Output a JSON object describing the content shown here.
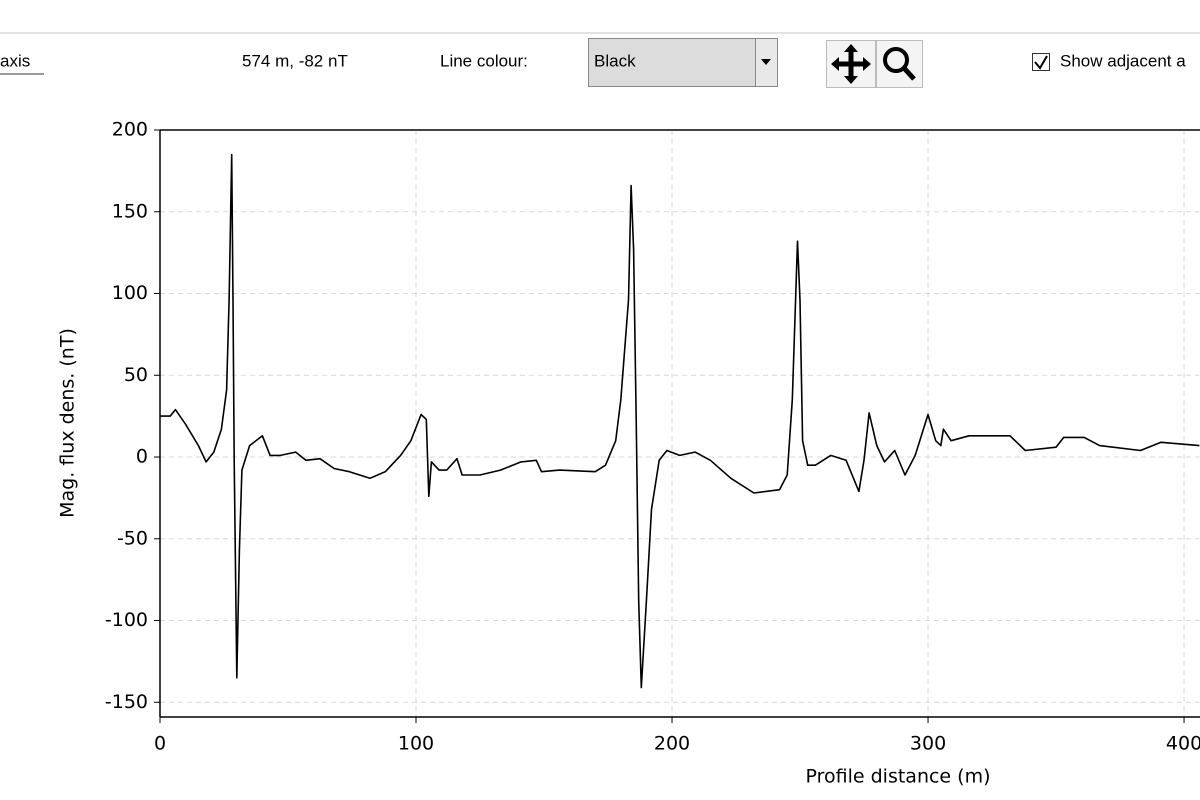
{
  "toolbar": {
    "axis_label": "axis",
    "cursor_readout": "574 m, -82 nT",
    "line_colour_label": "Line colour:",
    "line_colour_value": "Black",
    "show_adjacent_label": "Show adjacent a",
    "show_adjacent_checked": true
  },
  "chart_data": {
    "type": "line",
    "x_label": "Profile distance (m)",
    "y_label": "Mag. flux dens. (nT)",
    "x": [
      0,
      4,
      6,
      10,
      15,
      18,
      21,
      24,
      26,
      27,
      28,
      28.5,
      29,
      30,
      31,
      32,
      35,
      40,
      43,
      47,
      53,
      57,
      62.5,
      68,
      74,
      82,
      88,
      94,
      98,
      102,
      104,
      105,
      106,
      109,
      112,
      116,
      118,
      125,
      133,
      141,
      147,
      149,
      156,
      170,
      174,
      178,
      180,
      183,
      184,
      185,
      186,
      187,
      188,
      190,
      192,
      195,
      198,
      203,
      209,
      215,
      223,
      232,
      242,
      245,
      247,
      249,
      250,
      251,
      253,
      256,
      262,
      268,
      273,
      275,
      277,
      280,
      283,
      287,
      291,
      295,
      300,
      303,
      305,
      306,
      309,
      316,
      332,
      338,
      350,
      353,
      361,
      367,
      383,
      391,
      406
    ],
    "series": [
      {
        "color": "#000000",
        "values": [
          25,
          25,
          29,
          20,
          7,
          -3,
          3,
          17,
          41,
          96,
          185,
          96,
          -2,
          -135,
          -57,
          -8,
          7,
          13,
          1,
          1,
          3,
          -2,
          -1,
          -7,
          -9,
          -13,
          -9,
          1,
          10,
          26,
          23,
          -24,
          -3,
          -8,
          -8,
          -1,
          -11,
          -11,
          -8,
          -3,
          -2,
          -9,
          -8,
          -9,
          -5,
          10,
          35,
          96,
          166,
          127,
          23,
          -88,
          -141,
          -88,
          -32,
          -2,
          4,
          1,
          3,
          -2,
          -13,
          -22,
          -20,
          -11,
          35,
          132,
          96,
          10,
          -5,
          -5,
          1,
          -2,
          -21,
          -2,
          27,
          7,
          -3,
          4,
          -11,
          1,
          26,
          10,
          7,
          17,
          10,
          13,
          13,
          4,
          6,
          12,
          12,
          7,
          4,
          9,
          7
        ]
      }
    ],
    "xlim": [
      0,
      406
    ],
    "ylim": [
      -159,
      200
    ],
    "xticks": [
      0,
      100,
      200,
      300,
      400
    ],
    "yticks": [
      -150,
      -100,
      -50,
      0,
      50,
      100,
      150,
      200
    ],
    "grid": true
  }
}
